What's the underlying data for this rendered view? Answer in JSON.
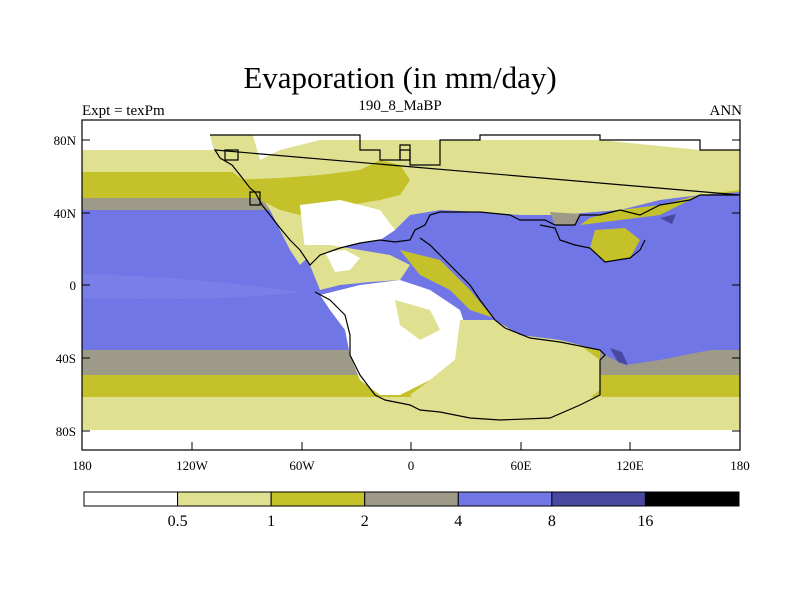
{
  "title": "Evaporation (in mm/day)",
  "left_string": "Expt = texPm",
  "center_string": "190_8_MaBP",
  "right_string": "ANN",
  "y_axis_labels": [
    "80N",
    "40N",
    "0",
    "40S",
    "80S"
  ],
  "x_axis_labels": [
    "180",
    "120W",
    "60W",
    "0",
    "60E",
    "120E",
    "180"
  ],
  "colorbar": {
    "levels": [
      "0.5",
      "1",
      "2",
      "4",
      "8",
      "16"
    ],
    "colors": [
      "#ffffff",
      "#e0e190",
      "#c4c12a",
      "#9d9a88",
      "#7176e6",
      "#4848a0",
      "#000000"
    ]
  },
  "palette": {
    "land_outline": "#000000",
    "frame": "#000000"
  }
}
